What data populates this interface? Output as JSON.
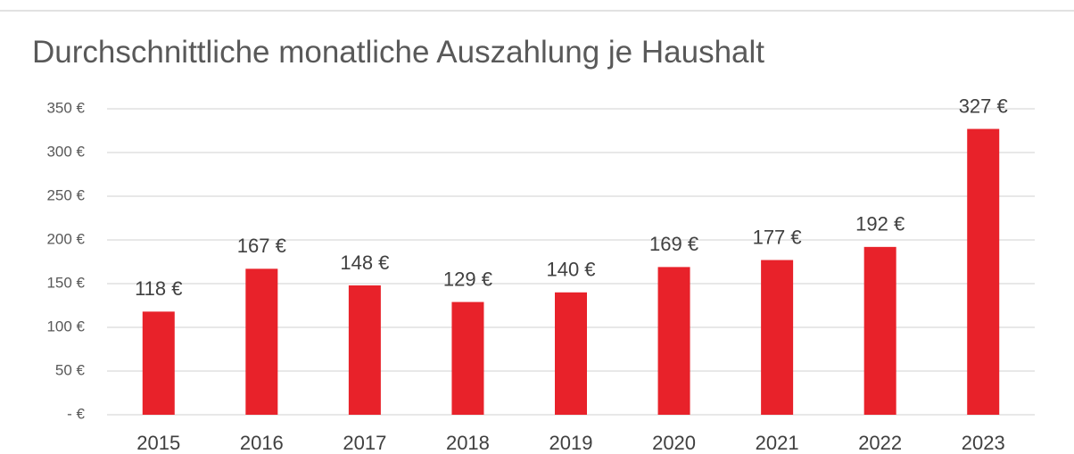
{
  "chart_data": {
    "type": "bar",
    "title": "Durchschnittliche monatliche Auszahlung je Haushalt",
    "categories": [
      "2015",
      "2016",
      "2017",
      "2018",
      "2019",
      "2020",
      "2021",
      "2022",
      "2023"
    ],
    "values": [
      118,
      167,
      148,
      129,
      140,
      169,
      177,
      192,
      327
    ],
    "value_labels": [
      "118 €",
      "167 €",
      "148 €",
      "129 €",
      "140 €",
      "169 €",
      "177 €",
      "192 €",
      "327 €"
    ],
    "color": "#e8222a",
    "ylim": [
      0,
      350
    ],
    "yticks": [
      {
        "value": 0,
        "label": "-   €"
      },
      {
        "value": 50,
        "label": "50 €"
      },
      {
        "value": 100,
        "label": "100 €"
      },
      {
        "value": 150,
        "label": "150 €"
      },
      {
        "value": 200,
        "label": "200 €"
      },
      {
        "value": 250,
        "label": "250 €"
      },
      {
        "value": 300,
        "label": "300 €"
      },
      {
        "value": 350,
        "label": "350 €"
      }
    ],
    "grid": true
  }
}
